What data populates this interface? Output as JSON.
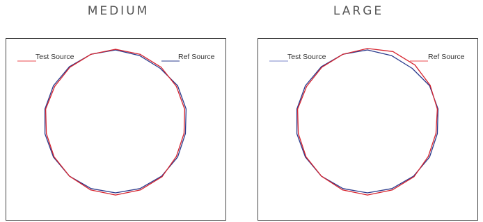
{
  "chart_data": [
    {
      "type": "line",
      "subtype": "polar",
      "title": "MEDIUM",
      "legend": [
        {
          "name": "Test Source",
          "color": "#e8474c",
          "position": "top-left"
        },
        {
          "name": "Ref Source",
          "color": "#2a3a8c",
          "position": "top-right"
        }
      ],
      "angles_deg": [
        0,
        20,
        40,
        60,
        80,
        100,
        120,
        140,
        160,
        180,
        200,
        220,
        240,
        260,
        280,
        300,
        320,
        340
      ],
      "series": [
        {
          "name": "Test Source",
          "color": "#d6232e",
          "values": [
            1.01,
            1.0,
            0.99,
            0.98,
            0.98,
            0.97,
            0.98,
            1.01,
            1.02,
            1.03,
            1.02,
            1.0,
            0.99,
            0.98,
            0.99,
            0.98,
            0.99,
            1.0
          ]
        },
        {
          "name": "Ref Source",
          "color": "#2a3a8c",
          "values": [
            1.0,
            0.98,
            0.97,
            1.0,
            1.0,
            0.99,
            1.0,
            1.0,
            1.0,
            1.0,
            1.0,
            1.0,
            1.0,
            1.0,
            1.0,
            1.0,
            1.0,
            1.0
          ]
        }
      ]
    },
    {
      "type": "line",
      "subtype": "polar",
      "title": "LARGE",
      "legend": [
        {
          "name": "Test Source",
          "color": "#7a86c8",
          "position": "top-left"
        },
        {
          "name": "Ref Source",
          "color": "#e8474c",
          "position": "top-right"
        }
      ],
      "angles_deg": [
        0,
        20,
        40,
        60,
        80,
        100,
        120,
        140,
        160,
        180,
        200,
        220,
        240,
        260,
        280,
        300,
        320,
        340
      ],
      "series": [
        {
          "name": "Test Source",
          "color": "#d6232e",
          "values": [
            1.02,
            1.04,
            1.03,
            1.01,
            0.99,
            0.97,
            0.98,
            1.01,
            1.02,
            1.03,
            1.02,
            1.0,
            0.99,
            0.98,
            0.99,
            0.98,
            0.99,
            1.0
          ]
        },
        {
          "name": "Ref Source",
          "color": "#2a3a8c",
          "values": [
            1.0,
            0.98,
            0.97,
            1.0,
            1.0,
            0.99,
            1.0,
            1.0,
            1.0,
            1.0,
            1.0,
            1.0,
            1.0,
            1.0,
            1.0,
            1.0,
            1.0,
            1.0
          ]
        }
      ]
    }
  ]
}
